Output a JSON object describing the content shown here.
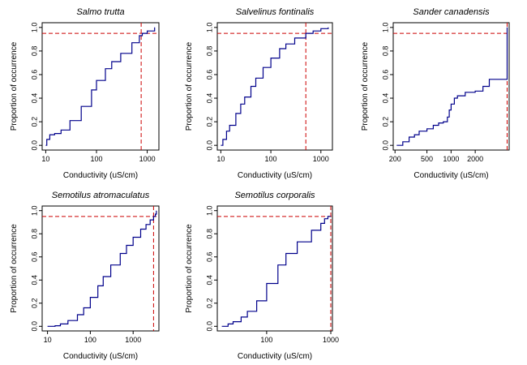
{
  "colors": {
    "curve": "#00008B",
    "reference": "#CC0000"
  },
  "chart_data": [
    {
      "type": "line",
      "title": "Salmo trutta",
      "xlabel": "Conductivity (uS/cm)",
      "ylabel": "Proportion of occurrence",
      "xscale": "log",
      "xlim": [
        8.5,
        1700
      ],
      "ylim": [
        -0.04,
        1.04
      ],
      "xticks": [
        {
          "v": 10,
          "label": "10"
        },
        {
          "v": 100,
          "label": "100"
        },
        {
          "v": 1000,
          "label": "1000"
        }
      ],
      "yticks": [
        {
          "v": 0,
          "label": "0.0"
        },
        {
          "v": 0.2,
          "label": "0.2"
        },
        {
          "v": 0.4,
          "label": "0.4"
        },
        {
          "v": 0.6,
          "label": "0.6"
        },
        {
          "v": 0.8,
          "label": "0.8"
        },
        {
          "v": 1.0,
          "label": "1.0"
        }
      ],
      "reference": {
        "x": 760,
        "y": 0.95
      },
      "x": [
        10,
        10.5,
        12,
        15,
        20,
        30,
        50,
        80,
        100,
        150,
        200,
        300,
        500,
        700,
        800,
        1000,
        1400
      ],
      "y": [
        0.0,
        0.05,
        0.09,
        0.1,
        0.13,
        0.21,
        0.33,
        0.47,
        0.55,
        0.65,
        0.71,
        0.78,
        0.87,
        0.93,
        0.95,
        0.97,
        1.0
      ]
    },
    {
      "type": "line",
      "title": "Salvelinus fontinalis",
      "xlabel": "Conductivity (uS/cm)",
      "ylabel": "Proportion of occurrence",
      "xscale": "log",
      "xlim": [
        8.5,
        1700
      ],
      "ylim": [
        -0.04,
        1.04
      ],
      "xticks": [
        {
          "v": 10,
          "label": "10"
        },
        {
          "v": 100,
          "label": "100"
        },
        {
          "v": 1000,
          "label": "1000"
        }
      ],
      "yticks": [
        {
          "v": 0,
          "label": "0.0"
        },
        {
          "v": 0.2,
          "label": "0.2"
        },
        {
          "v": 0.4,
          "label": "0.4"
        },
        {
          "v": 0.6,
          "label": "0.6"
        },
        {
          "v": 0.8,
          "label": "0.8"
        },
        {
          "v": 1.0,
          "label": "1.0"
        }
      ],
      "reference": {
        "x": 500,
        "y": 0.95
      },
      "x": [
        10,
        11,
        13,
        15,
        20,
        25,
        30,
        40,
        50,
        70,
        100,
        150,
        200,
        300,
        500,
        700,
        1000,
        1400
      ],
      "y": [
        0.0,
        0.05,
        0.12,
        0.17,
        0.27,
        0.35,
        0.41,
        0.5,
        0.57,
        0.66,
        0.74,
        0.82,
        0.86,
        0.91,
        0.95,
        0.97,
        0.99,
        1.0
      ]
    },
    {
      "type": "line",
      "title": "Sander canadensis",
      "xlabel": "Conductivity (uS/cm)",
      "ylabel": "Proportion of occurrence",
      "xscale": "log",
      "xlim": [
        190,
        5300
      ],
      "ylim": [
        -0.04,
        1.04
      ],
      "xticks": [
        {
          "v": 200,
          "label": "200"
        },
        {
          "v": 500,
          "label": "500"
        },
        {
          "v": 1000,
          "label": "1000"
        },
        {
          "v": 2000,
          "label": "2000"
        }
      ],
      "yticks": [
        {
          "v": 0,
          "label": "0.0"
        },
        {
          "v": 0.2,
          "label": "0.2"
        },
        {
          "v": 0.4,
          "label": "0.4"
        },
        {
          "v": 0.6,
          "label": "0.6"
        },
        {
          "v": 0.8,
          "label": "0.8"
        },
        {
          "v": 1.0,
          "label": "1.0"
        }
      ],
      "reference": {
        "x": 5000,
        "y": 0.95
      },
      "x": [
        210,
        250,
        300,
        350,
        400,
        500,
        600,
        700,
        800,
        900,
        950,
        1000,
        1100,
        1200,
        1500,
        2000,
        2500,
        3000,
        5000,
        5000
      ],
      "y": [
        0.0,
        0.03,
        0.07,
        0.09,
        0.12,
        0.14,
        0.17,
        0.19,
        0.2,
        0.24,
        0.3,
        0.35,
        0.4,
        0.42,
        0.45,
        0.46,
        0.5,
        0.56,
        0.56,
        1.0
      ]
    },
    {
      "type": "line",
      "title": "Semotilus atromaculatus",
      "xlabel": "Conductivity (uS/cm)",
      "ylabel": "Proportion of occurrence",
      "xscale": "log",
      "xlim": [
        7.5,
        4000
      ],
      "ylim": [
        -0.04,
        1.04
      ],
      "xticks": [
        {
          "v": 10,
          "label": "10"
        },
        {
          "v": 100,
          "label": "100"
        },
        {
          "v": 1000,
          "label": "1000"
        }
      ],
      "yticks": [
        {
          "v": 0,
          "label": "0.0"
        },
        {
          "v": 0.2,
          "label": "0.2"
        },
        {
          "v": 0.4,
          "label": "0.4"
        },
        {
          "v": 0.6,
          "label": "0.6"
        },
        {
          "v": 0.8,
          "label": "0.8"
        },
        {
          "v": 1.0,
          "label": "1.0"
        }
      ],
      "reference": {
        "x": 3000,
        "y": 0.95
      },
      "x": [
        10,
        15,
        20,
        30,
        50,
        70,
        100,
        150,
        200,
        300,
        500,
        700,
        1000,
        1500,
        2000,
        2500,
        3000,
        3300,
        3500
      ],
      "y": [
        0.0,
        0.005,
        0.02,
        0.05,
        0.1,
        0.16,
        0.25,
        0.35,
        0.43,
        0.53,
        0.63,
        0.7,
        0.77,
        0.84,
        0.88,
        0.92,
        0.95,
        0.97,
        1.0
      ]
    },
    {
      "type": "line",
      "title": "Semotilus corporalis",
      "xlabel": "Conductivity (uS/cm)",
      "ylabel": "Proportion of occurrence",
      "xscale": "log",
      "xlim": [
        17,
        1060
      ],
      "ylim": [
        -0.04,
        1.04
      ],
      "xticks": [
        {
          "v": 100,
          "label": "100"
        },
        {
          "v": 1000,
          "label": "1000"
        }
      ],
      "yticks": [
        {
          "v": 0,
          "label": "0.0"
        },
        {
          "v": 0.2,
          "label": "0.2"
        },
        {
          "v": 0.4,
          "label": "0.4"
        },
        {
          "v": 0.6,
          "label": "0.6"
        },
        {
          "v": 0.8,
          "label": "0.8"
        },
        {
          "v": 1.0,
          "label": "1.0"
        }
      ],
      "reference": {
        "x": 1000,
        "y": 0.95
      },
      "x": [
        20,
        25,
        30,
        40,
        50,
        70,
        100,
        150,
        200,
        300,
        500,
        700,
        800,
        900,
        1000
      ],
      "y": [
        0.0,
        0.02,
        0.04,
        0.08,
        0.13,
        0.22,
        0.37,
        0.53,
        0.63,
        0.73,
        0.83,
        0.89,
        0.93,
        0.95,
        0.95
      ]
    }
  ]
}
